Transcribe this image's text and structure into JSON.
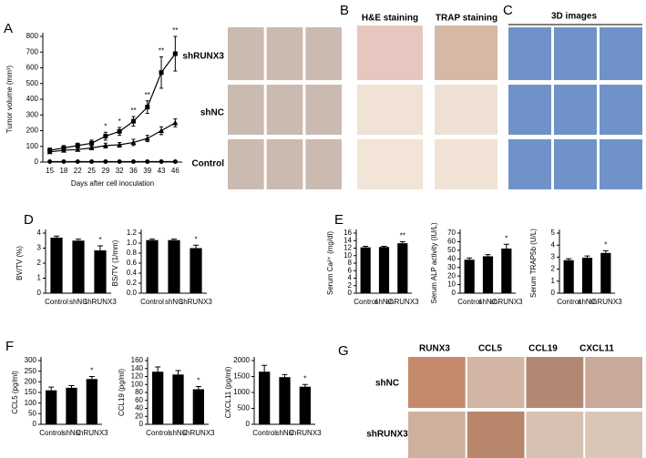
{
  "figure": {
    "panel_labels": [
      "A",
      "B",
      "C",
      "D",
      "E",
      "F",
      "G"
    ],
    "a_rows": [
      "shRUNX3",
      "shNC",
      "Control"
    ],
    "b_headers": [
      "H&E staining",
      "TRAP staining"
    ],
    "c_header": "3D images",
    "g_cols": [
      "RUNX3",
      "CCL5",
      "CCL19",
      "CXCL11"
    ],
    "g_rows": [
      "shNC",
      "shRUNX3"
    ]
  },
  "chart_data": [
    {
      "type": "line",
      "ylabel": "Tumor volume (mm³)",
      "xlabel": "Days after cell inoculation",
      "categories": [
        "15",
        "18",
        "22",
        "25",
        "29",
        "32",
        "36",
        "39",
        "43",
        "46"
      ],
      "ylim": [
        0,
        800
      ],
      "yticks": [
        0,
        100,
        200,
        300,
        400,
        500,
        600,
        700,
        800
      ],
      "series": [
        {
          "marker": "square",
          "color": "#000000",
          "values": [
            75,
            90,
            105,
            120,
            165,
            195,
            260,
            350,
            570,
            690
          ],
          "errors": [
            15,
            15,
            15,
            20,
            25,
            25,
            30,
            40,
            100,
            110
          ]
        },
        {
          "marker": "triangle",
          "color": "#000000",
          "values": [
            65,
            75,
            80,
            90,
            105,
            110,
            125,
            150,
            200,
            250
          ],
          "errors": [
            10,
            10,
            10,
            10,
            15,
            15,
            20,
            20,
            25,
            25
          ]
        },
        {
          "marker": "circle",
          "color": "#000000",
          "values": [
            3,
            3,
            3,
            3,
            3,
            3,
            3,
            3,
            3,
            3
          ],
          "errors": [
            3,
            3,
            3,
            3,
            3,
            3,
            3,
            3,
            3,
            3
          ]
        }
      ],
      "annotations": [
        {
          "category": "29",
          "text": "*"
        },
        {
          "category": "32",
          "text": "*"
        },
        {
          "category": "36",
          "text": "**"
        },
        {
          "category": "39",
          "text": "**"
        },
        {
          "category": "43",
          "text": "**"
        },
        {
          "category": "46",
          "text": "**"
        }
      ]
    },
    {
      "type": "bar",
      "ylabel": "BV/TV (%)",
      "categories": [
        "Control",
        "shNC",
        "shRUNX3"
      ],
      "color": "#000000",
      "values": [
        3.7,
        3.5,
        2.85
      ],
      "errors": [
        0.1,
        0.1,
        0.3
      ],
      "ylim": [
        0,
        4
      ],
      "yticks": [
        0,
        1,
        2,
        3,
        4
      ],
      "annotations": [
        {
          "category": "shRUNX3",
          "text": "*"
        }
      ]
    },
    {
      "type": "bar",
      "ylabel": "BS/TV (1/mm)",
      "categories": [
        "Control",
        "shNC",
        "shRUNX3"
      ],
      "color": "#000000",
      "values": [
        1.06,
        1.06,
        0.9
      ],
      "errors": [
        0.02,
        0.02,
        0.06
      ],
      "ylim": [
        0,
        1.2
      ],
      "yticks": [
        {
          "value": 0,
          "label": "0.0"
        },
        {
          "value": 0.2,
          "label": "0.2"
        },
        {
          "value": 0.4,
          "label": "0.4"
        },
        {
          "value": 0.6,
          "label": "0.6"
        },
        {
          "value": 0.8,
          "label": "0.8"
        },
        {
          "value": 1,
          "label": "1.0"
        },
        {
          "value": 1.2,
          "label": "1.2"
        }
      ],
      "annotations": [
        {
          "category": "shRUNX3",
          "text": "*"
        }
      ]
    },
    {
      "type": "bar",
      "ylabel": "Serum Ca²⁺ (mg/dl)",
      "categories": [
        "Control",
        "shNC",
        "shRUNX3"
      ],
      "color": "#000000",
      "values": [
        12.2,
        12.3,
        13.3
      ],
      "errors": [
        0.3,
        0.2,
        0.4
      ],
      "ylim": [
        0,
        16
      ],
      "yticks": [
        0,
        2,
        4,
        6,
        8,
        10,
        12,
        14,
        16
      ],
      "annotations": [
        {
          "category": "shRUNX3",
          "text": "**"
        }
      ]
    },
    {
      "type": "bar",
      "ylabel": "Serum ALP activity (IU/L)",
      "categories": [
        "Control",
        "shNC",
        "shRUNX3"
      ],
      "color": "#000000",
      "values": [
        39,
        43,
        52
      ],
      "errors": [
        2,
        2,
        5
      ],
      "ylim": [
        0,
        70
      ],
      "yticks": [
        0,
        10,
        20,
        30,
        40,
        50,
        60,
        70
      ],
      "annotations": [
        {
          "category": "shRUNX3",
          "text": "*"
        }
      ]
    },
    {
      "type": "bar",
      "ylabel": "Serum TRAP5b (U/L)",
      "categories": [
        "Control",
        "shNC",
        "shRUNX3"
      ],
      "color": "#000000",
      "values": [
        2.75,
        2.95,
        3.35
      ],
      "errors": [
        0.12,
        0.15,
        0.18
      ],
      "ylim": [
        0,
        5
      ],
      "yticks": [
        0,
        1,
        2,
        3,
        4,
        5
      ],
      "annotations": [
        {
          "category": "shRUNX3",
          "text": "*"
        }
      ]
    },
    {
      "type": "bar",
      "ylabel": "CCL5 (pg/ml)",
      "categories": [
        "Control",
        "shNC",
        "shRUNX3"
      ],
      "color": "#000000",
      "values": [
        160,
        172,
        213
      ],
      "errors": [
        15,
        10,
        12
      ],
      "ylim": [
        0,
        300
      ],
      "yticks": [
        0,
        50,
        100,
        150,
        200,
        250,
        300
      ],
      "annotations": [
        {
          "category": "shRUNX3",
          "text": "*"
        }
      ]
    },
    {
      "type": "bar",
      "ylabel": "CCL19 (pg/ml)",
      "categories": [
        "Control",
        "shNC",
        "shRUNX3"
      ],
      "color": "#000000",
      "values": [
        132,
        125,
        88
      ],
      "errors": [
        12,
        10,
        7
      ],
      "ylim": [
        0,
        160
      ],
      "yticks": [
        0,
        20,
        40,
        60,
        80,
        100,
        120,
        140,
        160
      ],
      "annotations": [
        {
          "category": "shRUNX3",
          "text": "*"
        }
      ]
    },
    {
      "type": "bar",
      "ylabel": "CXCL11 (pg/ml)",
      "categories": [
        "Control",
        "shNC",
        "shRUNX3"
      ],
      "color": "#000000",
      "values": [
        1650,
        1480,
        1180
      ],
      "errors": [
        200,
        80,
        70
      ],
      "ylim": [
        0,
        2000
      ],
      "yticks": [
        0,
        500,
        1000,
        1500,
        2000
      ],
      "annotations": [
        {
          "category": "shRUNX3",
          "text": "*"
        }
      ]
    }
  ]
}
